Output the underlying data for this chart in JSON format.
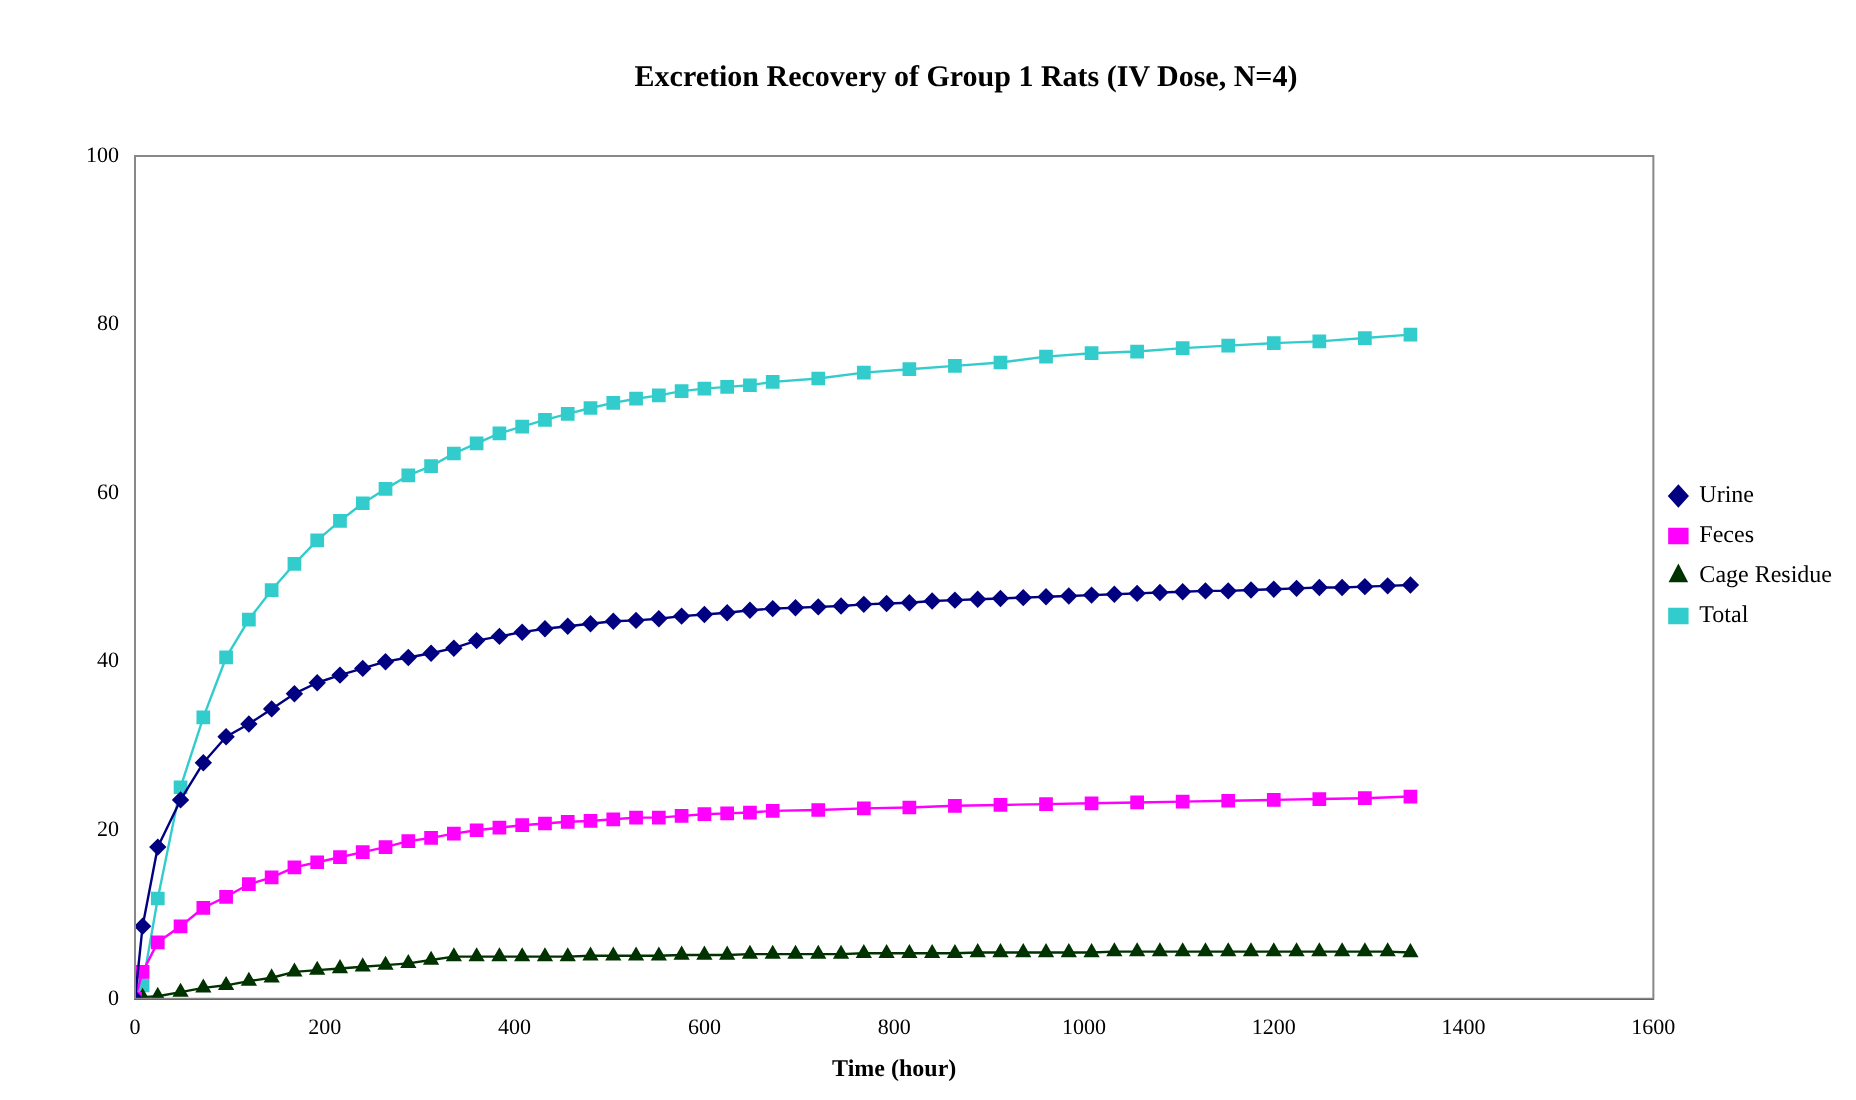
{
  "chart_data": {
    "type": "line",
    "title": "Excretion Recovery of Group 1 Rats (IV Dose, N=4)",
    "xlabel": "Time (hour)",
    "xlim": [
      0,
      1600
    ],
    "xticks": [
      0,
      200,
      400,
      600,
      800,
      1000,
      1200,
      1400,
      1600
    ],
    "ylim": [
      0,
      100
    ],
    "yticks": [
      0,
      20,
      40,
      60,
      80,
      100
    ],
    "grid": false,
    "legend": "right",
    "series": [
      {
        "name": "Urine",
        "color": "#000080",
        "marker": "diamond",
        "x": [
          0,
          8,
          24,
          48,
          72,
          96,
          120,
          144,
          168,
          192,
          216,
          240,
          264,
          288,
          312,
          336,
          360,
          384,
          408,
          432,
          456,
          480,
          504,
          528,
          552,
          576,
          600,
          624,
          648,
          672,
          696,
          720,
          744,
          768,
          792,
          816,
          840,
          864,
          888,
          912,
          936,
          960,
          984,
          1008,
          1032,
          1056,
          1080,
          1104,
          1128,
          1152,
          1176,
          1200,
          1224,
          1248,
          1272,
          1296,
          1320,
          1344
        ],
        "values": [
          0,
          8.6,
          18,
          23.6,
          28,
          31.1,
          32.6,
          34.4,
          36.2,
          37.5,
          38.4,
          39.2,
          40,
          40.5,
          41,
          41.6,
          42.5,
          43,
          43.5,
          43.9,
          44.2,
          44.5,
          44.8,
          44.9,
          45.1,
          45.4,
          45.6,
          45.8,
          46.1,
          46.3,
          46.4,
          46.5,
          46.6,
          46.8,
          46.9,
          47,
          47.2,
          47.3,
          47.4,
          47.5,
          47.6,
          47.7,
          47.8,
          47.9,
          48,
          48.1,
          48.2,
          48.3,
          48.4,
          48.4,
          48.5,
          48.6,
          48.7,
          48.8,
          48.8,
          48.9,
          49,
          49.1
        ]
      },
      {
        "name": "Feces",
        "color": "#ff00ff",
        "marker": "square",
        "x": [
          0,
          8,
          24,
          48,
          72,
          96,
          120,
          144,
          168,
          192,
          216,
          240,
          264,
          288,
          312,
          336,
          360,
          384,
          408,
          432,
          456,
          480,
          504,
          528,
          552,
          576,
          600,
          624,
          648,
          672,
          720,
          768,
          816,
          864,
          912,
          960,
          1008,
          1056,
          1104,
          1152,
          1200,
          1248,
          1296,
          1344
        ],
        "values": [
          0,
          3.2,
          6.7,
          8.6,
          10.8,
          12.1,
          13.6,
          14.4,
          15.6,
          16.2,
          16.8,
          17.4,
          18,
          18.7,
          19.1,
          19.6,
          20,
          20.3,
          20.6,
          20.8,
          21,
          21.1,
          21.3,
          21.5,
          21.5,
          21.7,
          21.9,
          22,
          22.1,
          22.3,
          22.4,
          22.6,
          22.7,
          22.9,
          23,
          23.1,
          23.2,
          23.3,
          23.4,
          23.5,
          23.6,
          23.7,
          23.8,
          24
        ]
      },
      {
        "name": "Cage Residue",
        "color": "#003300",
        "marker": "triangle",
        "x": [
          0,
          8,
          24,
          48,
          72,
          96,
          120,
          144,
          168,
          192,
          216,
          240,
          264,
          288,
          312,
          336,
          360,
          384,
          408,
          432,
          456,
          480,
          504,
          528,
          552,
          576,
          600,
          624,
          648,
          672,
          696,
          720,
          744,
          768,
          792,
          816,
          840,
          864,
          888,
          912,
          936,
          960,
          984,
          1008,
          1032,
          1056,
          1080,
          1104,
          1128,
          1152,
          1176,
          1200,
          1224,
          1248,
          1272,
          1296,
          1320,
          1344
        ],
        "values": [
          0,
          0.2,
          0.3,
          0.8,
          1.3,
          1.6,
          2.1,
          2.5,
          3.2,
          3.4,
          3.6,
          3.8,
          4,
          4.2,
          4.6,
          5,
          5,
          5,
          5,
          5,
          5,
          5.1,
          5.1,
          5.1,
          5.1,
          5.2,
          5.2,
          5.2,
          5.3,
          5.3,
          5.3,
          5.3,
          5.3,
          5.4,
          5.4,
          5.4,
          5.4,
          5.4,
          5.5,
          5.5,
          5.5,
          5.5,
          5.5,
          5.5,
          5.6,
          5.6,
          5.6,
          5.6,
          5.6,
          5.6,
          5.6,
          5.6,
          5.6,
          5.6,
          5.6,
          5.6,
          5.6,
          5.5
        ]
      },
      {
        "name": "Total",
        "color": "#33cccc",
        "marker": "square",
        "x": [
          0,
          8,
          24,
          48,
          72,
          96,
          120,
          144,
          168,
          192,
          216,
          240,
          264,
          288,
          312,
          336,
          360,
          384,
          408,
          432,
          456,
          480,
          504,
          528,
          552,
          576,
          600,
          624,
          648,
          672,
          720,
          768,
          816,
          864,
          912,
          960,
          1008,
          1056,
          1104,
          1152,
          1200,
          1248,
          1296,
          1344
        ],
        "values": [
          0,
          1.6,
          11.9,
          25.1,
          33.4,
          40.5,
          45,
          48.5,
          51.6,
          54.4,
          56.7,
          58.8,
          60.5,
          62.1,
          63.2,
          64.7,
          65.9,
          67.1,
          67.9,
          68.7,
          69.4,
          70.1,
          70.7,
          71.2,
          71.6,
          72.1,
          72.4,
          72.6,
          72.8,
          73.2,
          73.6,
          74.3,
          74.7,
          75.1,
          75.5,
          76.2,
          76.6,
          76.8,
          77.2,
          77.5,
          77.8,
          78,
          78.4,
          78.8
        ]
      }
    ]
  }
}
